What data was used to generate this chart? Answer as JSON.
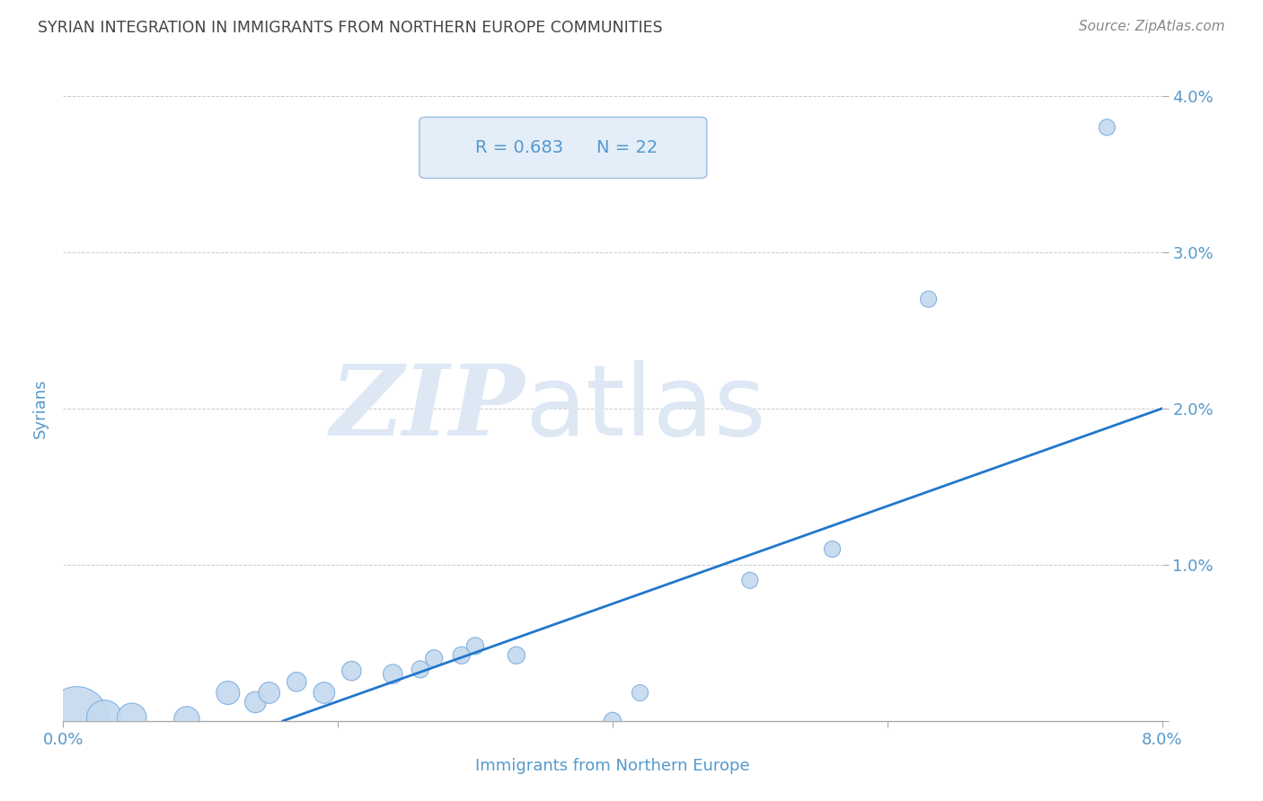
{
  "title": "SYRIAN INTEGRATION IN IMMIGRANTS FROM NORTHERN EUROPE COMMUNITIES",
  "source": "Source: ZipAtlas.com",
  "xlabel": "Immigrants from Northern Europe",
  "ylabel": "Syrians",
  "R": 0.683,
  "N": 22,
  "xlim": [
    0.0,
    0.08
  ],
  "ylim": [
    0.0,
    0.04
  ],
  "xticks": [
    0.0,
    0.02,
    0.04,
    0.06,
    0.08
  ],
  "yticks": [
    0.0,
    0.01,
    0.02,
    0.03,
    0.04
  ],
  "xtick_labels": [
    "0.0%",
    "",
    "",
    "",
    "8.0%"
  ],
  "ytick_labels": [
    "",
    "1.0%",
    "2.0%",
    "3.0%",
    "4.0%"
  ],
  "scatter_x": [
    0.001,
    0.003,
    0.005,
    0.009,
    0.012,
    0.014,
    0.015,
    0.017,
    0.019,
    0.021,
    0.024,
    0.026,
    0.027,
    0.029,
    0.03,
    0.033,
    0.04,
    0.042,
    0.05,
    0.056,
    0.063,
    0.076
  ],
  "scatter_y": [
    0.0002,
    0.0002,
    0.0002,
    0.0001,
    0.0018,
    0.0012,
    0.0018,
    0.0025,
    0.0018,
    0.0032,
    0.003,
    0.0033,
    0.004,
    0.0042,
    0.0048,
    0.0042,
    0.0,
    0.0018,
    0.009,
    0.011,
    0.027,
    0.038
  ],
  "scatter_size": [
    2500,
    800,
    550,
    420,
    350,
    290,
    290,
    240,
    290,
    240,
    240,
    190,
    190,
    190,
    190,
    190,
    190,
    170,
    170,
    170,
    170,
    170
  ],
  "dot_facecolor": "#c5d9ee",
  "dot_edgecolor": "#7aade0",
  "line_color": "#2277cc",
  "line_x": [
    0.016,
    0.08
  ],
  "line_y": [
    0.0,
    0.02
  ],
  "grid_color": "#cccccc",
  "watermark_zip": "ZIP",
  "watermark_atlas": "atlas",
  "watermark_color": "#dde8f4",
  "background_color": "#ffffff",
  "title_color": "#444444",
  "axis_label_color": "#5599cc",
  "tick_label_color": "#5599cc",
  "annotation_box_facecolor": "#e4eef8",
  "annotation_box_edgecolor": "#99bbdd",
  "annotation_text_color": "#5599cc",
  "source_color": "#888888"
}
